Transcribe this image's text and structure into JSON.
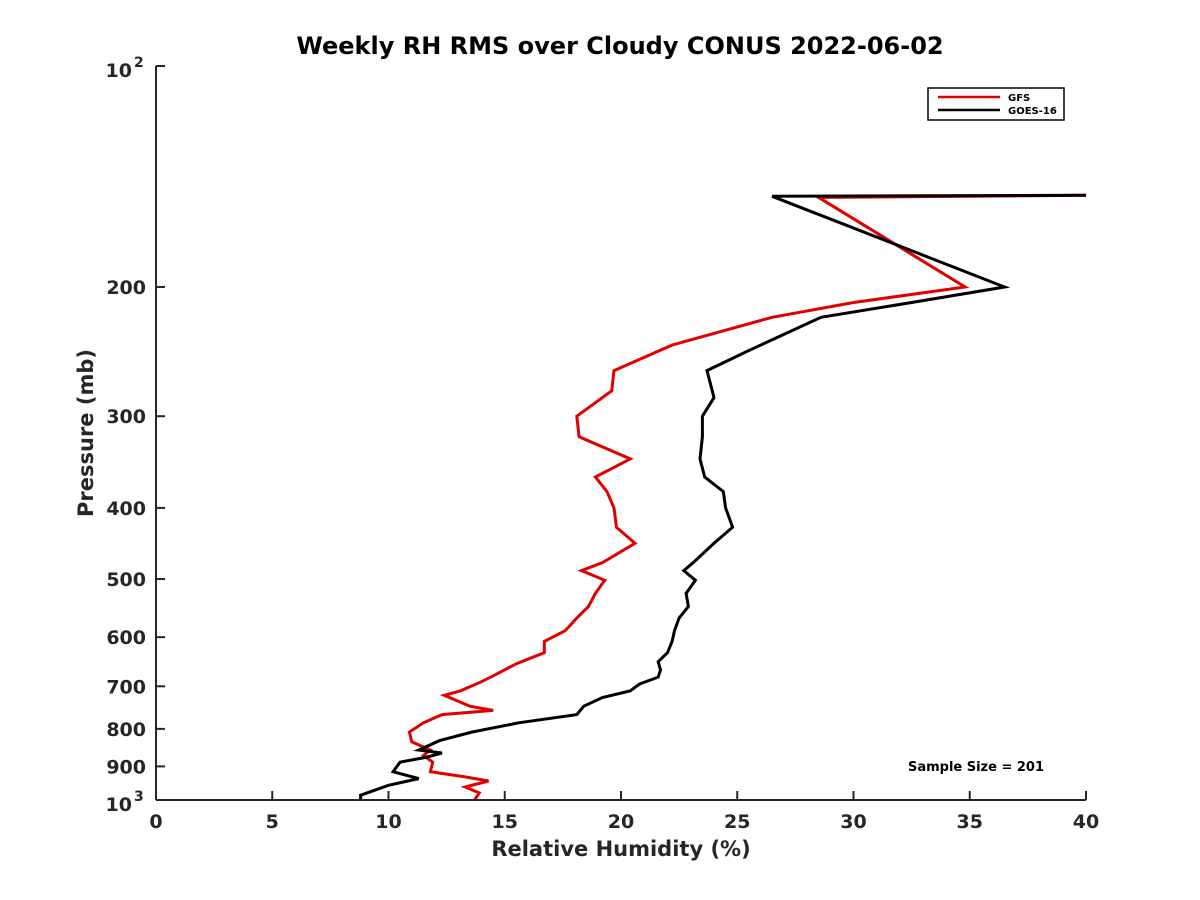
{
  "chart_data": {
    "type": "line",
    "title": "Weekly RH RMS over Cloudy CONUS 2022-06-02",
    "xlabel": "Relative Humidity (%)",
    "ylabel": "Pressure (mb)",
    "xlim": [
      0,
      40
    ],
    "ylim": [
      100,
      1000
    ],
    "y_scale": "log",
    "y_reversed": true,
    "x_ticks": [
      0,
      5,
      10,
      15,
      20,
      25,
      30,
      35,
      40
    ],
    "x_tick_labels": [
      "0",
      "5",
      "10",
      "15",
      "20",
      "25",
      "30",
      "35",
      "40"
    ],
    "y_ticks": [
      200,
      300,
      400,
      500,
      600,
      700,
      800,
      900
    ],
    "y_tick_labels": [
      "200",
      "300",
      "400",
      "500",
      "600",
      "700",
      "800",
      "900"
    ],
    "y_top_label": {
      "base": "10",
      "exp": "2"
    },
    "y_bottom_label": {
      "base": "10",
      "exp": "3"
    },
    "grid": false,
    "legend_position": "top-right",
    "annotation": "Sample Size = 201",
    "series": [
      {
        "name": "GFS",
        "color": "#e00000",
        "points": [
          [
            40,
            150
          ],
          [
            28.5,
            151
          ],
          [
            34.8,
            200
          ],
          [
            30,
            210
          ],
          [
            26.5,
            220
          ],
          [
            22.2,
            240
          ],
          [
            19.7,
            260
          ],
          [
            19.6,
            277
          ],
          [
            18.1,
            300
          ],
          [
            18.2,
            320
          ],
          [
            20.4,
            343
          ],
          [
            18.9,
            363
          ],
          [
            19.4,
            380
          ],
          [
            19.7,
            400
          ],
          [
            19.8,
            425
          ],
          [
            20.6,
            447
          ],
          [
            19.2,
            475
          ],
          [
            18.3,
            487
          ],
          [
            19.3,
            502
          ],
          [
            18.9,
            523
          ],
          [
            18.6,
            545
          ],
          [
            18.1,
            565
          ],
          [
            17.6,
            588
          ],
          [
            16.7,
            608
          ],
          [
            16.7,
            630
          ],
          [
            15.5,
            652
          ],
          [
            14.6,
            675
          ],
          [
            14.0,
            690
          ],
          [
            13.1,
            710
          ],
          [
            12.4,
            720
          ],
          [
            13.5,
            745
          ],
          [
            14.5,
            755
          ],
          [
            12.3,
            765
          ],
          [
            11.5,
            785
          ],
          [
            10.9,
            808
          ],
          [
            11.0,
            833
          ],
          [
            11.8,
            855
          ],
          [
            11.5,
            870
          ],
          [
            11.9,
            888
          ],
          [
            11.8,
            915
          ],
          [
            12.5,
            922
          ],
          [
            13.3,
            930
          ],
          [
            14.3,
            942
          ],
          [
            13.3,
            960
          ],
          [
            13.9,
            978
          ],
          [
            13.7,
            1000
          ]
        ]
      },
      {
        "name": "GOES-16",
        "color": "#000000",
        "points": [
          [
            40,
            150
          ],
          [
            26.5,
            150.5
          ],
          [
            36.5,
            200
          ],
          [
            32.5,
            210
          ],
          [
            28.6,
            220
          ],
          [
            25.4,
            245
          ],
          [
            23.7,
            260
          ],
          [
            24.0,
            283
          ],
          [
            23.5,
            300
          ],
          [
            23.5,
            320
          ],
          [
            23.4,
            343
          ],
          [
            23.6,
            363
          ],
          [
            24.4,
            380
          ],
          [
            24.5,
            400
          ],
          [
            24.8,
            425
          ],
          [
            24.0,
            447
          ],
          [
            23.1,
            475
          ],
          [
            22.7,
            487
          ],
          [
            23.2,
            502
          ],
          [
            22.8,
            523
          ],
          [
            22.9,
            545
          ],
          [
            22.5,
            565
          ],
          [
            22.3,
            588
          ],
          [
            22.2,
            608
          ],
          [
            22.0,
            630
          ],
          [
            21.6,
            648
          ],
          [
            21.7,
            665
          ],
          [
            21.6,
            680
          ],
          [
            20.8,
            695
          ],
          [
            20.4,
            710
          ],
          [
            19.2,
            725
          ],
          [
            18.4,
            745
          ],
          [
            18.1,
            765
          ],
          [
            15.6,
            785
          ],
          [
            13.6,
            808
          ],
          [
            12.2,
            830
          ],
          [
            11.3,
            855
          ],
          [
            12.3,
            863
          ],
          [
            11.6,
            875
          ],
          [
            10.5,
            888
          ],
          [
            10.2,
            915
          ],
          [
            11.3,
            935
          ],
          [
            10.0,
            955
          ],
          [
            8.8,
            985
          ],
          [
            8.8,
            1000
          ]
        ]
      }
    ]
  }
}
